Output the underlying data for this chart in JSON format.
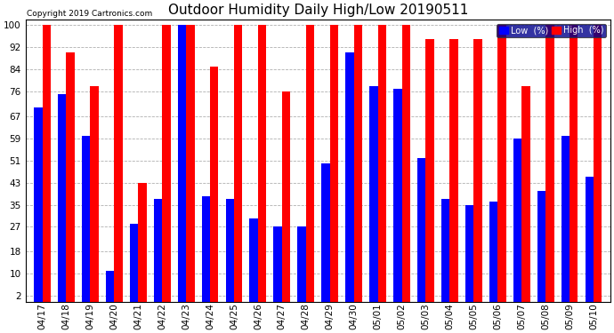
{
  "title": "Outdoor Humidity Daily High/Low 20190511",
  "copyright": "Copyright 2019 Cartronics.com",
  "categories": [
    "04/17",
    "04/18",
    "04/19",
    "04/20",
    "04/21",
    "04/22",
    "04/23",
    "04/24",
    "04/25",
    "04/26",
    "04/27",
    "04/28",
    "04/29",
    "04/30",
    "05/01",
    "05/02",
    "05/03",
    "05/04",
    "05/05",
    "05/06",
    "05/07",
    "05/08",
    "05/09",
    "05/10"
  ],
  "high_values": [
    100,
    90,
    78,
    100,
    43,
    100,
    100,
    85,
    100,
    100,
    76,
    100,
    100,
    100,
    100,
    100,
    95,
    95,
    95,
    100,
    78,
    100,
    100,
    100
  ],
  "low_values": [
    70,
    75,
    60,
    11,
    28,
    37,
    100,
    38,
    37,
    30,
    27,
    27,
    50,
    90,
    78,
    77,
    52,
    37,
    35,
    36,
    59,
    40,
    60,
    45
  ],
  "high_color": "#ff0000",
  "low_color": "#0000ff",
  "bg_color": "#ffffff",
  "plot_bg_color": "#ffffff",
  "grid_color": "#b0b0b0",
  "yticks": [
    2,
    10,
    18,
    27,
    35,
    43,
    51,
    59,
    67,
    76,
    84,
    92,
    100
  ],
  "ylim": [
    0,
    102
  ],
  "title_fontsize": 11,
  "bar_width": 0.35,
  "legend_low_label": "Low  (%)",
  "legend_high_label": "High  (%)"
}
